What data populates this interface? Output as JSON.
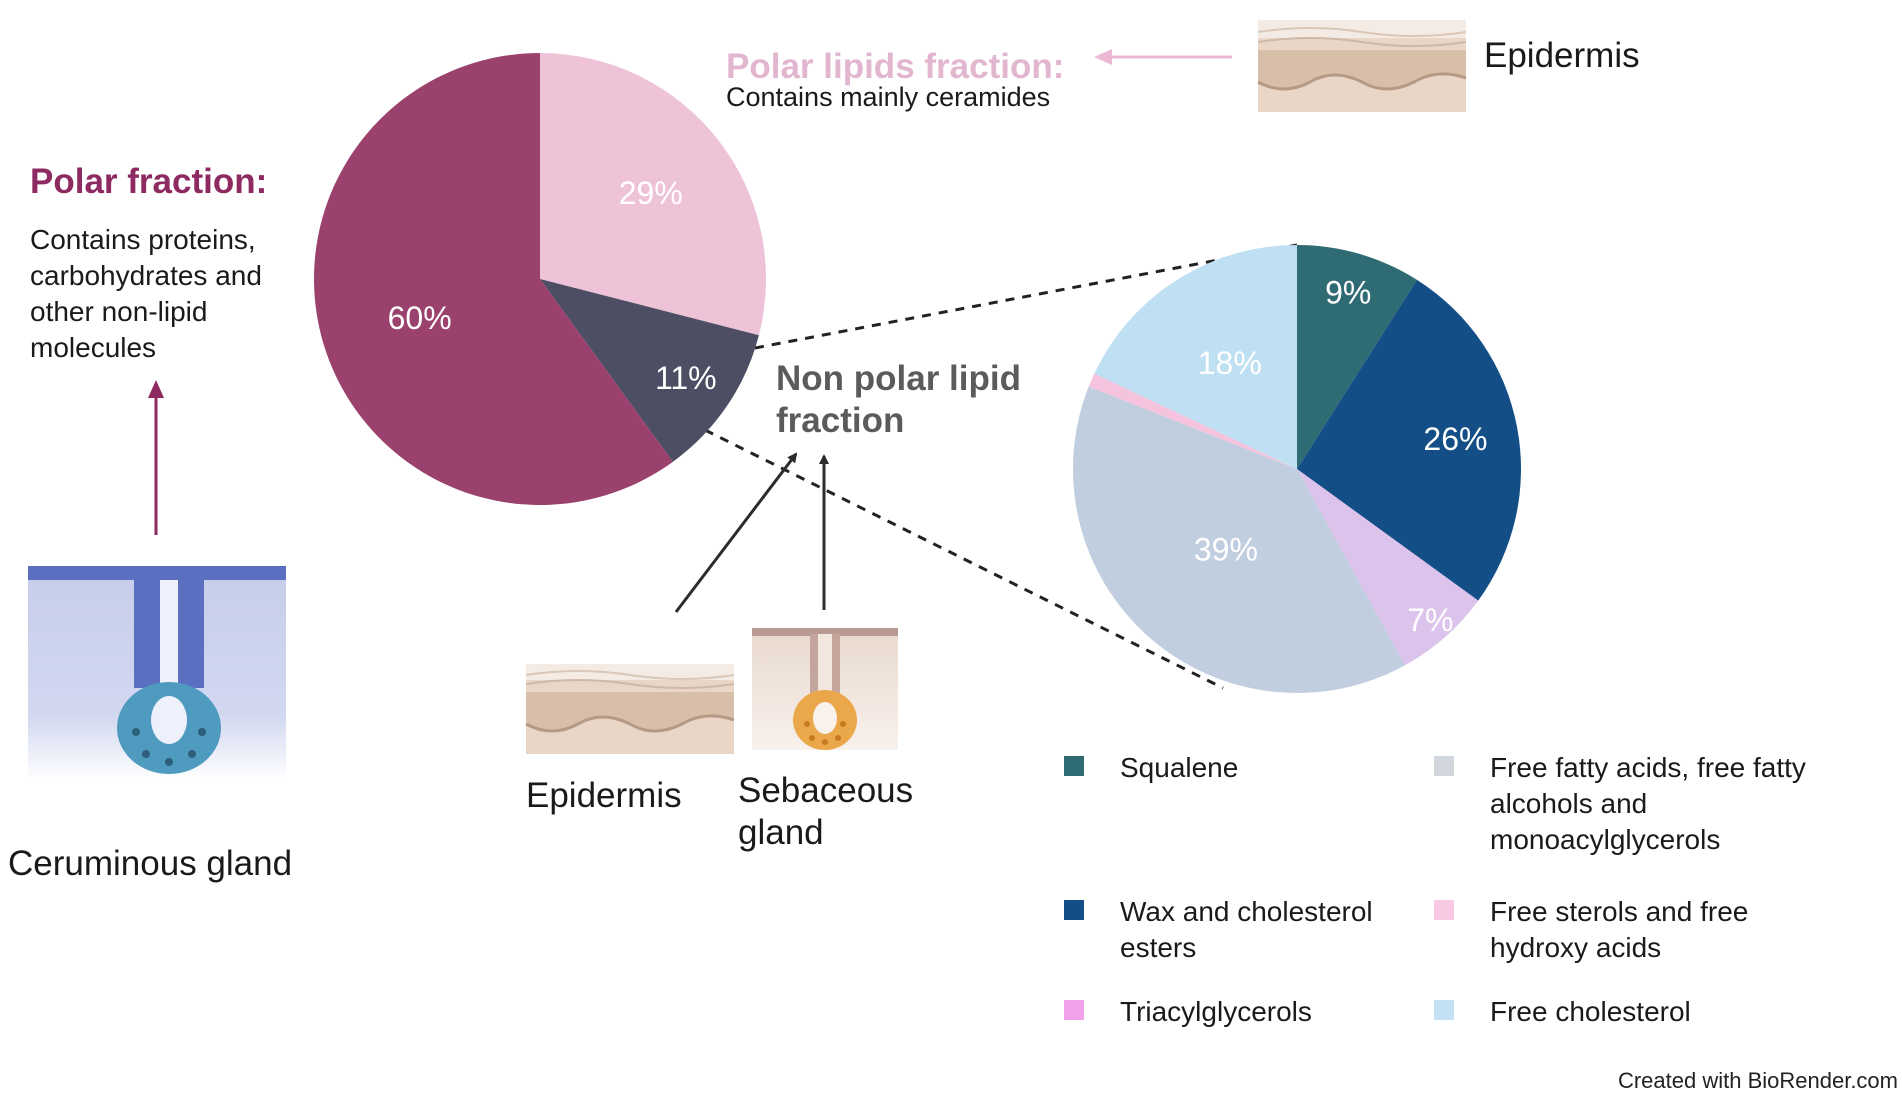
{
  "colors": {
    "polar": "#9b416d",
    "polar_lipids": "#eec3d8",
    "non_polar": "#4d4d63",
    "squalene": "#2f6b73",
    "wax": "#134e86",
    "triacylglycerols": "#dcc3ec",
    "ffa": "#c0cedf",
    "free_sterols": "#f5c3dd",
    "free_cholesterol": "#bfdff3",
    "arrow_polar": "#8e2a62",
    "arrow_lipids": "#ebb9d3",
    "arrow_dark": "#2b2b2b"
  },
  "labels": {
    "polar_fraction_title": "Polar fraction:",
    "polar_fraction_desc": "Contains proteins, carbohydrates and other non-lipid molecules",
    "polar_lipids_title": "Polar lipids fraction:",
    "polar_lipids_desc": "Contains mainly ceramides",
    "epidermis_top": "Epidermis",
    "non_polar": "Non polar lipid fraction",
    "epidermis_bottom": "Epidermis",
    "sebaceous_gland": "Sebaceous gland",
    "ceruminous_gland": "Ceruminous gland",
    "credit": "Created with BioRender.com"
  },
  "icons": [
    "epidermis-icon",
    "sebaceous-gland-icon",
    "ceruminous-gland-icon"
  ],
  "chart_data": [
    {
      "type": "pie",
      "slices": [
        {
          "name": "Polar lipids fraction",
          "value": 29,
          "label": "29%",
          "color_key": "polar_lipids"
        },
        {
          "name": "Non polar lipid fraction",
          "value": 11,
          "label": "11%",
          "color_key": "non_polar"
        },
        {
          "name": "Polar fraction",
          "value": 60,
          "label": "60%",
          "color_key": "polar"
        }
      ]
    },
    {
      "type": "pie",
      "slices": [
        {
          "name": "Squalene",
          "value": 9,
          "label": "9%",
          "color_key": "squalene"
        },
        {
          "name": "Wax and cholesterol esters",
          "value": 26,
          "label": "26%",
          "color_key": "wax"
        },
        {
          "name": "Triacylglycerols",
          "value": 7,
          "label": "7%",
          "color_key": "triacylglycerols"
        },
        {
          "name": "Free fatty acids, free fatty alcohols and monoacylglycerols",
          "value": 39,
          "label": "39%",
          "color_key": "ffa"
        },
        {
          "name": "Free sterols and free hydroxy acids",
          "value": 1,
          "label": "",
          "color_key": "free_sterols"
        },
        {
          "name": "Free cholesterol",
          "value": 18,
          "label": "18%",
          "color_key": "free_cholesterol"
        }
      ],
      "legend": [
        {
          "label": "Squalene",
          "color": "#2f6b73"
        },
        {
          "label": "Wax and cholesterol esters",
          "color": "#134e86"
        },
        {
          "label": "Triacylglycerols",
          "color": "#f2a0ea"
        },
        {
          "label": "Free fatty acids, free fatty alcohols and monoacylglycerols",
          "color": "#d2d6dd"
        },
        {
          "label": "Free sterols and free hydroxy acids",
          "color": "#f9c9e3"
        },
        {
          "label": "Free cholesterol",
          "color": "#c3e0f5"
        }
      ]
    }
  ]
}
